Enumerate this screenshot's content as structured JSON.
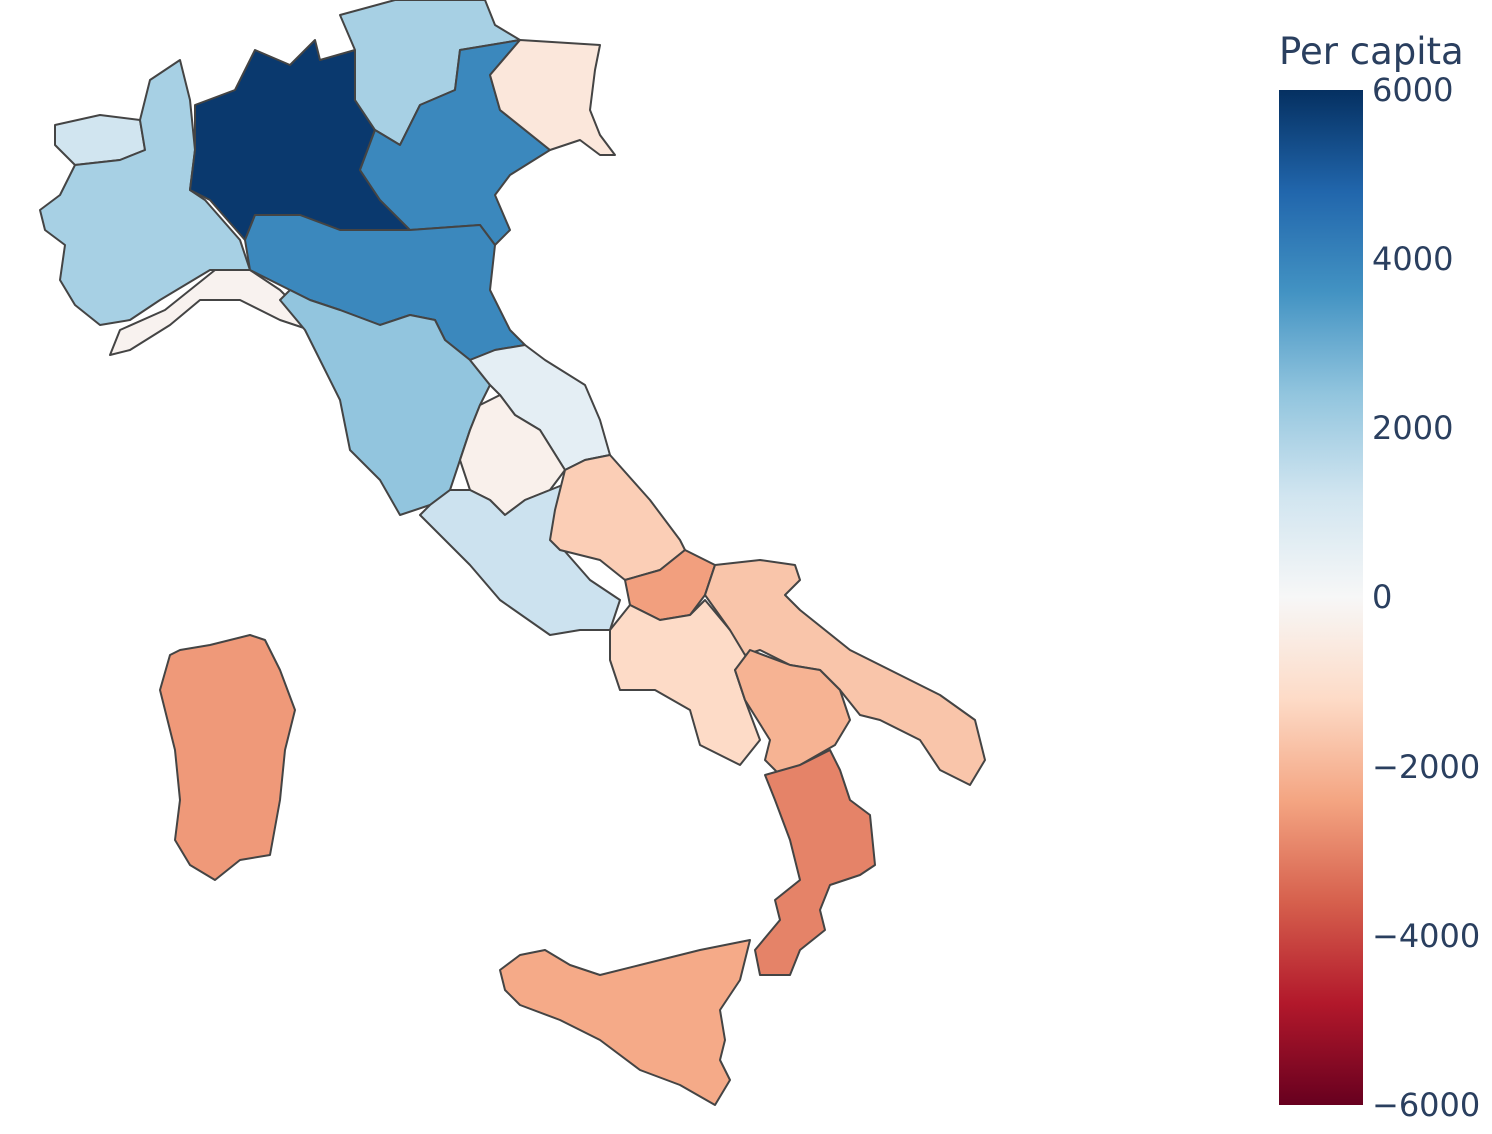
{
  "chart_data": {
    "type": "choropleth",
    "colorbar": {
      "title": "Per capita",
      "range": [
        -6000,
        6000
      ],
      "ticks": [
        "6000",
        "4000",
        "2000",
        "0",
        "−2000",
        "−4000",
        "−6000"
      ],
      "colorscale": [
        "#67001f",
        "#b2182b",
        "#d6604d",
        "#f4a582",
        "#fddbc7",
        "#f7f7f7",
        "#d1e5f0",
        "#92c5de",
        "#4393c3",
        "#2166ac",
        "#053061"
      ]
    },
    "locations": [
      "Valle d'Aosta",
      "Piemonte",
      "Lombardia",
      "Trentino-Alto Adige",
      "Veneto",
      "Friuli-Venezia Giulia",
      "Liguria",
      "Emilia-Romagna",
      "Toscana",
      "Marche",
      "Umbria",
      "Lazio",
      "Abruzzo",
      "Molise",
      "Campania",
      "Puglia",
      "Basilicata",
      "Calabria",
      "Sicilia",
      "Sardegna"
    ],
    "values": [
      1200,
      2000,
      5800,
      2000,
      3900,
      -700,
      -200,
      3900,
      2400,
      600,
      -300,
      1300,
      -1500,
      -2500,
      -1200,
      -1700,
      -2100,
      -3000,
      -2300,
      -2600
    ]
  }
}
